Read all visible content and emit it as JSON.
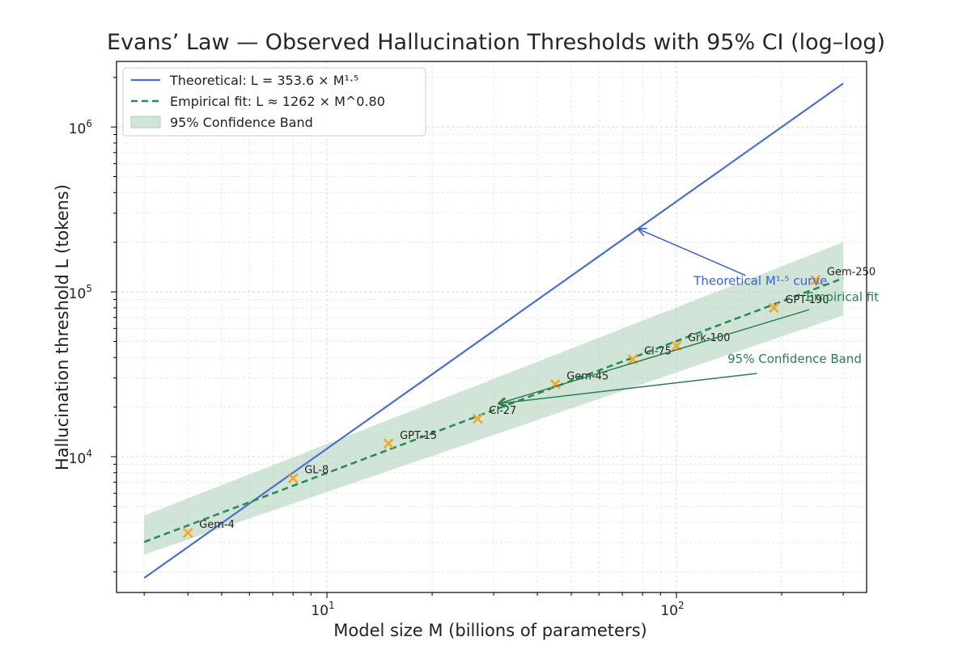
{
  "chart_data": {
    "type": "scatter",
    "title": "Evans’ Law — Observed Hallucination Thresholds with 95% CI (log–log)",
    "xlabel": "Model size M (billions of parameters)",
    "ylabel": "Hallucination threshold L (tokens)",
    "xscale": "log",
    "yscale": "log",
    "xlim": [
      2.5,
      350
    ],
    "ylim": [
      1500,
      2500000
    ],
    "grid": true,
    "xticks": [
      {
        "value": 10,
        "base": "10",
        "exp": "1"
      },
      {
        "value": 100,
        "base": "10",
        "exp": "2"
      }
    ],
    "yticks": [
      {
        "value": 10000,
        "base": "10",
        "exp": "4"
      },
      {
        "value": 100000,
        "base": "10",
        "exp": "5"
      },
      {
        "value": 1000000,
        "base": "10",
        "exp": "6"
      }
    ],
    "colors": {
      "theory": "#4a6fd4",
      "fit": "#2e8b57",
      "band": "#a9d0b6",
      "points": "#f5a623",
      "ann_blue": "#3a5fd0",
      "ann_green": "#2e7d4f"
    },
    "theoretical": {
      "coef": 353.6,
      "exp": 1.5,
      "x_range": [
        3,
        300
      ]
    },
    "empirical_fit": {
      "coef": 1262,
      "exp": 0.8,
      "x_range": [
        3,
        300
      ]
    },
    "confidence_band": {
      "x": [
        3,
        300
      ],
      "lower": [
        2550,
        72000
      ],
      "upper": [
        4400,
        200000
      ]
    },
    "points": [
      {
        "label": "Gem-4",
        "x": 4,
        "y": 3450
      },
      {
        "label": "GL-8",
        "x": 8,
        "y": 7400
      },
      {
        "label": "GPT-15",
        "x": 15,
        "y": 12000
      },
      {
        "label": "Cl-27",
        "x": 27,
        "y": 17000
      },
      {
        "label": "Gem-45",
        "x": 45,
        "y": 27500
      },
      {
        "label": "Cl-75",
        "x": 75,
        "y": 39000
      },
      {
        "label": "Grk-100",
        "x": 100,
        "y": 47000
      },
      {
        "label": "GPT-190",
        "x": 190,
        "y": 80000
      },
      {
        "label": "Gem-250",
        "x": 250,
        "y": 118000
      }
    ],
    "legend": {
      "position": "top-left",
      "entries": [
        {
          "kind": "line",
          "text": "Theoretical: L = 353.6 × M¹·⁵"
        },
        {
          "kind": "dashed",
          "text": "Empirical fit: L ≈ 1262 × M^0.80"
        },
        {
          "kind": "patch",
          "text": "95% Confidence Band"
        }
      ]
    },
    "annotations": [
      {
        "text": "Theoretical M¹·⁵ curve",
        "color": "blue",
        "text_at": [
          112,
          110000
        ],
        "arrow_to": [
          78,
          240000
        ]
      },
      {
        "text": "Empirical fit",
        "color": "green",
        "text_at": [
          235,
          88000
        ],
        "arrow_from": [
          240,
          78000
        ],
        "arrow_to": [
          31,
          21000
        ]
      },
      {
        "text": "95% Confidence Band",
        "color": "green",
        "text_at": [
          140,
          37000
        ],
        "arrow_from": [
          170,
          32000
        ],
        "arrow_to": [
          31,
          21000
        ]
      }
    ]
  }
}
